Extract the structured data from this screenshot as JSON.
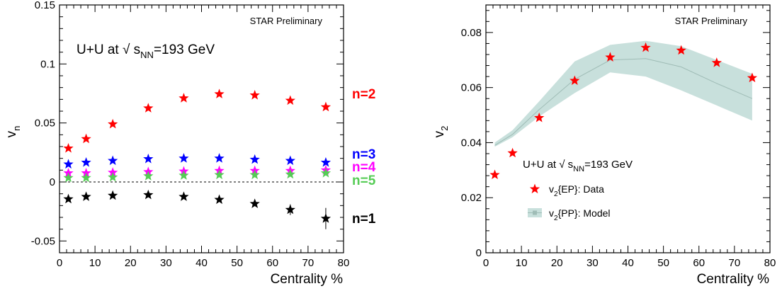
{
  "chart_data": [
    {
      "type": "scatter",
      "annotation": "STAR Preliminary",
      "system_label": {
        "prefix": "U+U at √ s",
        "sub": "NN",
        "suffix": "=193 GeV"
      },
      "xlabel": "Centrality %",
      "ylabel": {
        "base": "v",
        "sub": "n"
      },
      "xlim": [
        0,
        80
      ],
      "ylim": [
        -0.06,
        0.15
      ],
      "x_ticks": [
        "0",
        "10",
        "20",
        "30",
        "40",
        "50",
        "60",
        "70",
        "80"
      ],
      "y_ticks": [
        "-0.05",
        "0",
        "0.05",
        "0.1",
        "0.15"
      ],
      "x_tick_values": [
        0,
        10,
        20,
        30,
        40,
        50,
        60,
        70,
        80
      ],
      "y_tick_values": [
        -0.05,
        0,
        0.05,
        0.1,
        0.15
      ],
      "zero_line": true,
      "x": [
        2.5,
        7.5,
        15,
        25,
        35,
        45,
        55,
        65,
        75
      ],
      "series": [
        {
          "name": "n=2",
          "color": "#ff0000",
          "values": [
            0.0285,
            0.0365,
            0.049,
            0.0625,
            0.071,
            0.0745,
            0.0735,
            0.069,
            0.0635
          ]
        },
        {
          "name": "n=3",
          "color": "#0000ff",
          "values": [
            0.015,
            0.0165,
            0.018,
            0.0195,
            0.02,
            0.02,
            0.019,
            0.018,
            0.0165
          ]
        },
        {
          "name": "n=4",
          "color": "#ff00ff",
          "values": [
            0.0075,
            0.0075,
            0.008,
            0.0085,
            0.009,
            0.0095,
            0.0095,
            0.0095,
            0.01
          ]
        },
        {
          "name": "n=5",
          "color": "#55cc55",
          "values": [
            0.0035,
            0.0035,
            0.004,
            0.005,
            0.0055,
            0.006,
            0.006,
            0.0065,
            0.0075
          ]
        },
        {
          "name": "n=1",
          "color": "#000000",
          "values": [
            -0.0145,
            -0.0125,
            -0.0115,
            -0.011,
            -0.0125,
            -0.015,
            -0.0185,
            -0.0235,
            -0.031
          ],
          "errors": [
            0,
            0,
            0,
            0,
            0,
            0,
            0.0012,
            0.0045,
            0.009
          ]
        }
      ]
    },
    {
      "type": "scatter",
      "annotation": "STAR Preliminary",
      "system_label": {
        "prefix": "U+U at √ s",
        "sub": "NN",
        "suffix": "=193 GeV"
      },
      "xlabel": "Centrality %",
      "ylabel": {
        "base": "v",
        "sub": "2"
      },
      "xlim": [
        0,
        80
      ],
      "ylim": [
        0,
        0.09
      ],
      "x_ticks": [
        "0",
        "10",
        "20",
        "30",
        "40",
        "50",
        "60",
        "70",
        "80"
      ],
      "y_ticks": [
        "0",
        "0.02",
        "0.04",
        "0.06",
        "0.08"
      ],
      "x_tick_values": [
        0,
        10,
        20,
        30,
        40,
        50,
        60,
        70,
        80
      ],
      "y_tick_values": [
        0,
        0.02,
        0.04,
        0.06,
        0.08
      ],
      "legend": [
        {
          "prefix": "v",
          "sub": "2",
          "suffix": "{EP}: Data",
          "marker": "star",
          "color": "#ff0000"
        },
        {
          "prefix": "v",
          "sub": "2",
          "suffix": "{PP}: Model",
          "marker": "band",
          "color": "#c8e0dc"
        }
      ],
      "data_series": {
        "name": "v2{EP}: Data",
        "color": "#ff0000",
        "x": [
          2.5,
          7.5,
          15,
          25,
          35,
          45,
          55,
          65,
          75
        ],
        "values": [
          0.0283,
          0.0362,
          0.049,
          0.0625,
          0.071,
          0.0745,
          0.0735,
          0.069,
          0.0635
        ]
      },
      "model_band": {
        "name": "v2{PP}: Model",
        "color": "#c8e0dc",
        "x": [
          2.5,
          7.5,
          15,
          25,
          35,
          45,
          55,
          65,
          75
        ],
        "center": [
          0.039,
          0.043,
          0.052,
          0.063,
          0.07,
          0.0705,
          0.0675,
          0.0615,
          0.056
        ],
        "upper": [
          0.04,
          0.0445,
          0.055,
          0.0695,
          0.0755,
          0.077,
          0.075,
          0.07,
          0.065
        ],
        "lower": [
          0.0385,
          0.042,
          0.0495,
          0.058,
          0.0655,
          0.064,
          0.059,
          0.0535,
          0.048
        ]
      }
    }
  ]
}
